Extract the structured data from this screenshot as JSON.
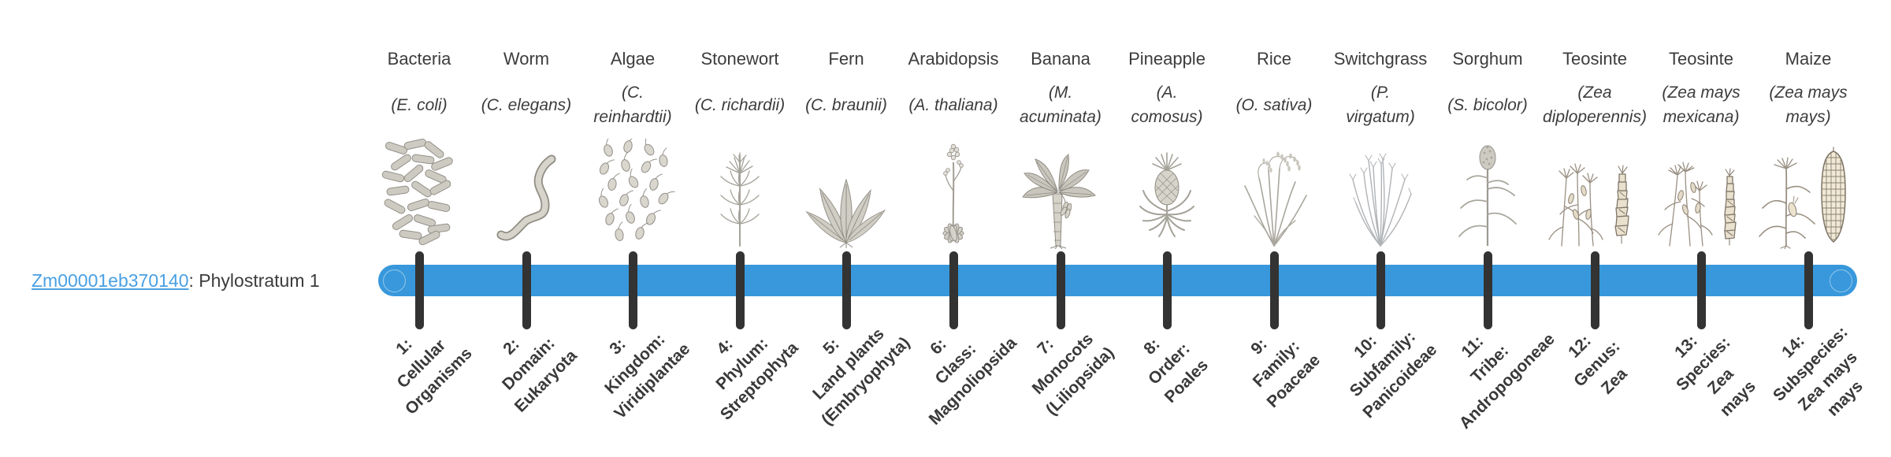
{
  "gene": {
    "id": "Zm00001eb370140",
    "suffix": ": Phylostratum 1"
  },
  "colors": {
    "bar": "#3898db",
    "tick": "#333333",
    "link": "#4aa0e2",
    "text": "#3c3c3c"
  },
  "organisms": [
    {
      "name": "Bacteria",
      "latin": [
        "(E. coli)"
      ],
      "icon": "bacteria",
      "stratum": [
        "1:",
        "Cellular",
        "Organisms"
      ]
    },
    {
      "name": "Worm",
      "latin": [
        "(C. elegans)"
      ],
      "icon": "worm",
      "stratum": [
        "2:",
        "Domain:",
        "Eukaryota"
      ]
    },
    {
      "name": "Algae",
      "latin": [
        "(C.",
        "reinhardtii)"
      ],
      "icon": "algae",
      "stratum": [
        "3:",
        "Kingdom:",
        "Viridiplantae"
      ]
    },
    {
      "name": "Stonewort",
      "latin": [
        "(C. richardii)"
      ],
      "icon": "stonewort",
      "stratum": [
        "4:",
        "Phylum:",
        "Streptophyta"
      ]
    },
    {
      "name": "Fern",
      "latin": [
        "(C. braunii)"
      ],
      "icon": "fern",
      "stratum": [
        "5:",
        "Land plants",
        "(Embryophyta)"
      ]
    },
    {
      "name": "Arabidopsis",
      "latin": [
        "(A. thaliana)"
      ],
      "icon": "arabidopsis",
      "stratum": [
        "6:",
        "Class:",
        "Magnoliopsida"
      ]
    },
    {
      "name": "Banana",
      "latin": [
        "(M.",
        "acuminata)"
      ],
      "icon": "banana",
      "stratum": [
        "7:",
        "Monocots",
        "(Liliopsida)"
      ]
    },
    {
      "name": "Pineapple",
      "latin": [
        "(A.",
        "comosus)"
      ],
      "icon": "pineapple",
      "stratum": [
        "8:",
        "Order:",
        "Poales"
      ]
    },
    {
      "name": "Rice",
      "latin": [
        "(O. sativa)"
      ],
      "icon": "rice",
      "stratum": [
        "9:",
        "Family:",
        "Poaceae"
      ]
    },
    {
      "name": "Switchgrass",
      "latin": [
        "(P.",
        "virgatum)"
      ],
      "icon": "switchgrass",
      "stratum": [
        "10:",
        "Subfamily:",
        "Panicoideae"
      ]
    },
    {
      "name": "Sorghum",
      "latin": [
        "(S. bicolor)"
      ],
      "icon": "sorghum",
      "stratum": [
        "11:",
        "Tribe:",
        "Andropogoneae"
      ]
    },
    {
      "name": "Teosinte",
      "latin": [
        "(Zea",
        "diploperennis)"
      ],
      "icon": "teosinte-diploperennis",
      "stratum": [
        "12:",
        "Genus:",
        "Zea"
      ]
    },
    {
      "name": "Teosinte",
      "latin": [
        "(Zea mays",
        "mexicana)"
      ],
      "icon": "teosinte-mexicana",
      "stratum": [
        "13:",
        "Species:",
        "Zea",
        "mays"
      ]
    },
    {
      "name": "Maize",
      "latin": [
        "(Zea mays",
        "mays)"
      ],
      "icon": "maize",
      "stratum": [
        "14:",
        "Subspecies:",
        "Zea mays",
        "mays"
      ]
    }
  ]
}
